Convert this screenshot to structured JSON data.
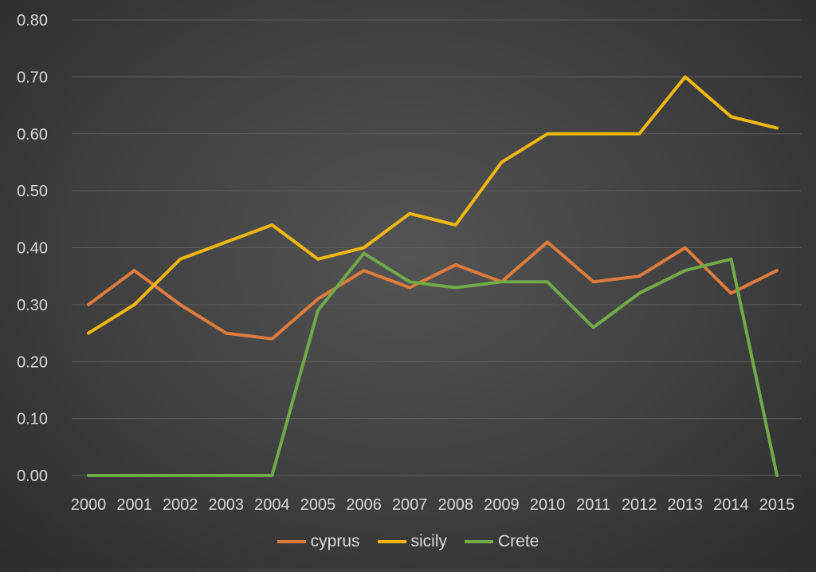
{
  "chart_data": {
    "type": "line",
    "title": "",
    "xlabel": "",
    "ylabel": "",
    "x": [
      "2000",
      "2001",
      "2002",
      "2003",
      "2004",
      "2005",
      "2006",
      "2007",
      "2008",
      "2009",
      "2010",
      "2011",
      "2012",
      "2013",
      "2014",
      "2015"
    ],
    "ylim": [
      0,
      0.8
    ],
    "yticks": [
      "0.00",
      "0.10",
      "0.20",
      "0.30",
      "0.40",
      "0.50",
      "0.60",
      "0.70",
      "0.80"
    ],
    "grid": true,
    "legend_position": "bottom",
    "series": [
      {
        "name": "cyprus",
        "color": "#e07b39",
        "values": [
          0.3,
          0.36,
          0.3,
          0.25,
          0.24,
          0.31,
          0.36,
          0.33,
          0.37,
          0.34,
          0.41,
          0.34,
          0.35,
          0.4,
          0.32,
          0.36
        ]
      },
      {
        "name": "sicily",
        "color": "#f2b807",
        "values": [
          0.25,
          0.3,
          0.38,
          0.41,
          0.44,
          0.38,
          0.4,
          0.46,
          0.44,
          0.55,
          0.6,
          0.6,
          0.6,
          0.7,
          0.63,
          0.61
        ]
      },
      {
        "name": "Crete",
        "color": "#6fac46",
        "values": [
          0.0,
          0.0,
          0.0,
          0.0,
          0.0,
          0.29,
          0.39,
          0.34,
          0.33,
          0.34,
          0.34,
          0.26,
          0.32,
          0.36,
          0.38,
          0.0
        ]
      }
    ]
  }
}
